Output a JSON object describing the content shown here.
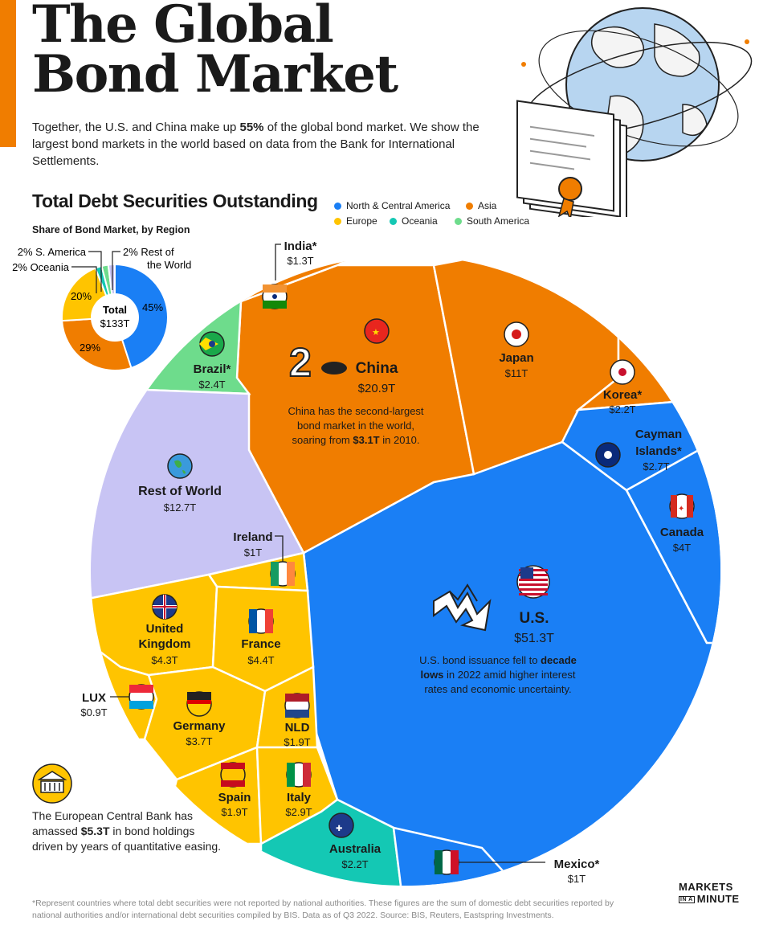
{
  "header": {
    "title_line1": "The Global",
    "title_line2": "Bond Market",
    "subtitle_pre": "Together, the U.S. and China make up ",
    "subtitle_bold": "55%",
    "subtitle_post": " of the global bond market. We show the largest bond markets in the world based on data from the Bank for International Settlements.",
    "section_title": "Total Debt Securities Outstanding",
    "donut_title": "Share of Bond Market, by Region"
  },
  "colors": {
    "north_central_america": "#1a7ff5",
    "asia": "#f07d00",
    "europe": "#ffc400",
    "oceania": "#14c8b4",
    "south_america": "#6edc8c",
    "rest_of_world": "#c8c4f4",
    "accent": "#f07d00"
  },
  "chart_data": [
    {
      "type": "pie",
      "title": "Share of Bond Market, by Region",
      "center_label": "Total",
      "center_value": "$133T",
      "slices": [
        {
          "name": "North & Central America",
          "value": 45,
          "label": "45%"
        },
        {
          "name": "Asia",
          "value": 29,
          "label": "29%"
        },
        {
          "name": "Europe",
          "value": 20,
          "label": "20%"
        },
        {
          "name": "Oceania",
          "value": 2,
          "label": "2% Oceania"
        },
        {
          "name": "South America",
          "value": 2,
          "label": "2% S. America"
        },
        {
          "name": "Rest of the World",
          "value": 2,
          "label": "2% Rest of the World"
        }
      ],
      "legend": [
        "North & Central America",
        "Asia",
        "Europe",
        "Oceania",
        "South America"
      ]
    },
    {
      "type": "treemap",
      "title": "Total Debt Securities Outstanding",
      "unit": "Trillion USD",
      "cells": [
        {
          "name": "U.S.",
          "value": 51.3,
          "label": "$51.3T",
          "region": "North & Central America"
        },
        {
          "name": "China",
          "value": 20.9,
          "label": "$20.9T",
          "region": "Asia"
        },
        {
          "name": "Rest of World",
          "value": 12.7,
          "label": "$12.7T",
          "region": "Rest of World"
        },
        {
          "name": "Japan",
          "value": 11,
          "label": "$11T",
          "region": "Asia"
        },
        {
          "name": "France",
          "value": 4.4,
          "label": "$4.4T",
          "region": "Europe"
        },
        {
          "name": "United Kingdom",
          "value": 4.3,
          "label": "$4.3T",
          "region": "Europe"
        },
        {
          "name": "Canada",
          "value": 4,
          "label": "$4T",
          "region": "North & Central America"
        },
        {
          "name": "Germany",
          "value": 3.7,
          "label": "$3.7T",
          "region": "Europe"
        },
        {
          "name": "Italy",
          "value": 2.9,
          "label": "$2.9T",
          "region": "Europe"
        },
        {
          "name": "Cayman Islands*",
          "value": 2.7,
          "label": "$2.7T",
          "region": "North & Central America"
        },
        {
          "name": "Brazil*",
          "value": 2.4,
          "label": "$2.4T",
          "region": "South America"
        },
        {
          "name": "Korea*",
          "value": 2.2,
          "label": "$2.2T",
          "region": "Asia"
        },
        {
          "name": "Australia",
          "value": 2.2,
          "label": "$2.2T",
          "region": "Oceania"
        },
        {
          "name": "NLD",
          "value": 1.9,
          "label": "$1.9T",
          "region": "Europe"
        },
        {
          "name": "Spain",
          "value": 1.9,
          "label": "$1.9T",
          "region": "Europe"
        },
        {
          "name": "India*",
          "value": 1.3,
          "label": "$1.3T",
          "region": "Asia"
        },
        {
          "name": "Ireland",
          "value": 1,
          "label": "$1T",
          "region": "Europe"
        },
        {
          "name": "Mexico*",
          "value": 1,
          "label": "$1T",
          "region": "North & Central America"
        },
        {
          "name": "LUX",
          "value": 0.9,
          "label": "$0.9T",
          "region": "Europe"
        }
      ]
    }
  ],
  "treemap_labels": {
    "us": {
      "name": "U.S.",
      "value": "$51.3T"
    },
    "china": {
      "name": "China",
      "value": "$20.9T"
    },
    "rest": {
      "name": "Rest of World",
      "value": "$12.7T"
    },
    "japan": {
      "name": "Japan",
      "value": "$11T"
    },
    "france": {
      "name": "France",
      "value": "$4.4T"
    },
    "uk_l1": "United",
    "uk_l2": "Kingdom",
    "uk_value": "$4.3T",
    "canada": {
      "name": "Canada",
      "value": "$4T"
    },
    "germany": {
      "name": "Germany",
      "value": "$3.7T"
    },
    "italy": {
      "name": "Italy",
      "value": "$2.9T"
    },
    "cayman_l1": "Cayman",
    "cayman_l2": "Islands*",
    "cayman_value": "$2.7T",
    "brazil": {
      "name": "Brazil*",
      "value": "$2.4T"
    },
    "korea": {
      "name": "Korea*",
      "value": "$2.2T"
    },
    "australia": {
      "name": "Australia",
      "value": "$2.2T"
    },
    "nld": {
      "name": "NLD",
      "value": "$1.9T"
    },
    "spain": {
      "name": "Spain",
      "value": "$1.9T"
    },
    "india": {
      "name": "India*",
      "value": "$1.3T"
    },
    "ireland": {
      "name": "Ireland",
      "value": "$1T"
    },
    "mexico": {
      "name": "Mexico*",
      "value": "$1T"
    },
    "lux": {
      "name": "LUX",
      "value": "$0.9T"
    }
  },
  "annotations": {
    "china_l1": "China has the second-largest",
    "china_l2": "bond market in the world,",
    "china_l3_pre": "soaring from ",
    "china_l3_bold": "$3.1T",
    "china_l3_post": " in 2010.",
    "china_rank": "2",
    "us_l1_pre": "U.S. bond issuance fell to ",
    "us_l1_bold": "decade",
    "us_l2_bold": "lows",
    "us_l2_post": " in 2022 amid higher interest",
    "us_l3": "rates and economic uncertainty.",
    "ecb_pre": "The European Central Bank has amassed ",
    "ecb_bold": "$5.3T",
    "ecb_post": " in bond holdings driven by years of quantitative easing."
  },
  "donut_labels": {
    "north_america": "45%",
    "asia": "29%",
    "europe": "20%",
    "oceania": "2% Oceania",
    "south_america": "2% S. America",
    "rest_l1": "2% Rest of",
    "rest_l2": "the World",
    "total_label": "Total",
    "total_value": "$133T"
  },
  "legend": [
    {
      "name": "North & Central America",
      "color": "#1a7ff5"
    },
    {
      "name": "Asia",
      "color": "#f07d00"
    },
    {
      "name": "Europe",
      "color": "#ffc400"
    },
    {
      "name": "Oceania",
      "color": "#14c8b4"
    },
    {
      "name": "South America",
      "color": "#6edc8c"
    }
  ],
  "footnote": "*Represent countries where total debt securities were not reported by national authorities. These figures are the sum of domestic debt securities reported by national authorities and/or international debt securities compiled by BIS. Data as of Q3 2022. Source: BIS, Reuters, Eastspring Investments.",
  "logo": {
    "line1": "MARKETS",
    "line2_small": "IN A",
    "line2": "MINUTE"
  }
}
